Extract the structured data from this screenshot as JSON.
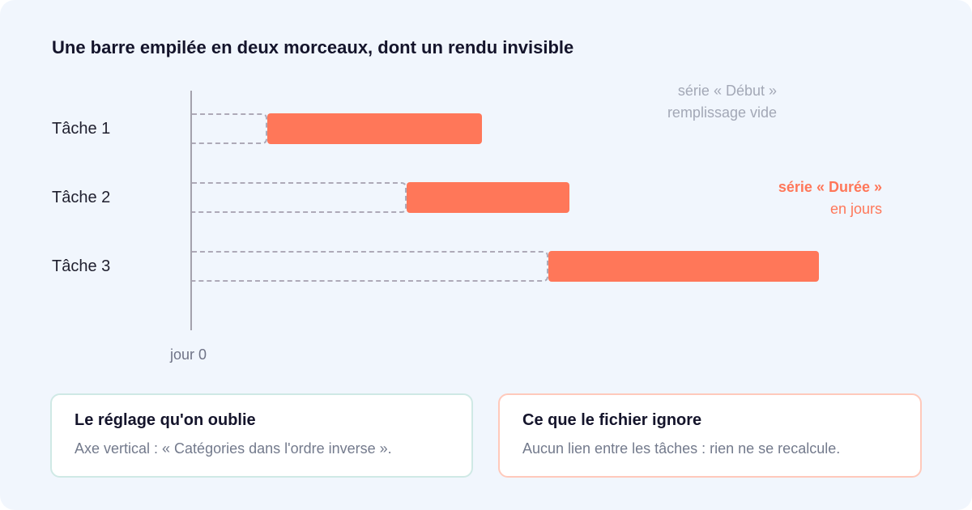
{
  "title": "Une barre empilée en deux morceaux, dont un rendu invisible",
  "chart_data": {
    "type": "bar",
    "orientation": "horizontal",
    "stacked": true,
    "categories": [
      "Tâche 1",
      "Tâche 2",
      "Tâche 3"
    ],
    "series": [
      {
        "name": "Début",
        "values": [
          3.5,
          10,
          16.6
        ],
        "fill": "none",
        "outline": "dashed",
        "color": "#aeaab8"
      },
      {
        "name": "Durée",
        "values": [
          10,
          7.6,
          12.6
        ],
        "color": "#ff7759"
      }
    ],
    "x_axis_label": "jour 0",
    "xlim": [
      0,
      30
    ],
    "grid": false,
    "legend": "annotations at right"
  },
  "annotations": {
    "start": {
      "line1": "série « Début »",
      "line2": "remplissage vide"
    },
    "duration": {
      "line1": "série « Durée »",
      "line2": "en jours"
    }
  },
  "boxes": {
    "left": {
      "title": "Le réglage qu'on oublie",
      "text": "Axe vertical : « Catégories dans l'ordre inverse »."
    },
    "right": {
      "title": "Ce que le fichier ignore",
      "text": "Aucun lien entre les tâches : rien ne se recalcule."
    }
  },
  "colors": {
    "background": "#f1f6fd",
    "duration": "#ff7759",
    "start_outline": "#aeaab8",
    "left_box_border": "#cfe9e5",
    "right_box_border": "#ffc9bb"
  }
}
